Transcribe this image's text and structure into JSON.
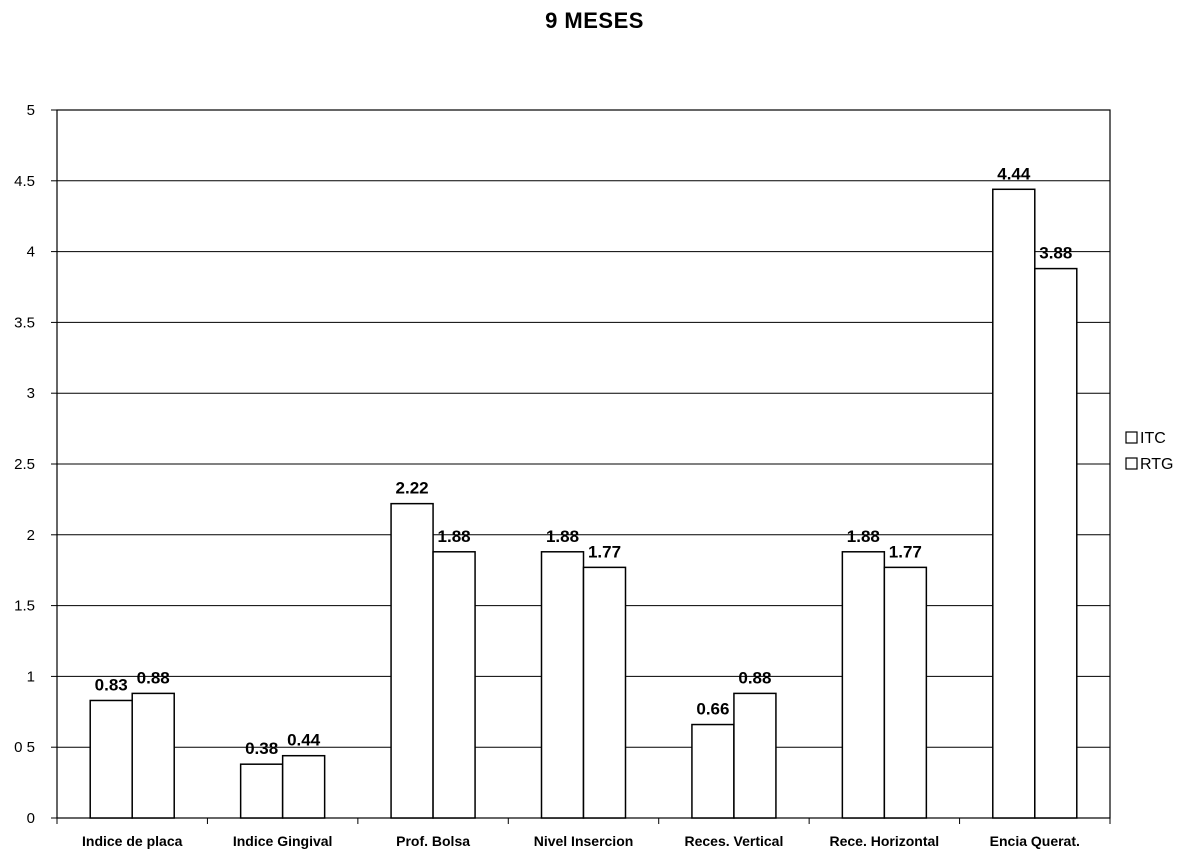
{
  "chart_data": {
    "type": "bar",
    "title": "9 MESES",
    "xlabel": "",
    "ylabel": "",
    "ylim": [
      0,
      5
    ],
    "ytick_step": 0.5,
    "ytick_labels": [
      "0",
      "0 5",
      "1",
      "1.5",
      "2",
      "2.5",
      "3",
      "3.5",
      "4",
      "4.5",
      "5"
    ],
    "grid": true,
    "legend_position": "right",
    "categories": [
      "Indice de placa",
      "Indice Gingival",
      "Prof. Bolsa",
      "Nivel Insercion",
      "Reces. Vertical",
      "Rece. Horizontal",
      "Encia Querat."
    ],
    "series": [
      {
        "name": "ITC",
        "values": [
          0.83,
          0.38,
          2.22,
          1.88,
          0.66,
          1.88,
          4.44
        ],
        "labels": [
          "0.83",
          "0.38",
          "2.22",
          "1.88",
          "0.66",
          "1.88",
          "4.44"
        ]
      },
      {
        "name": "RTG",
        "values": [
          0.88,
          0.44,
          1.88,
          1.77,
          0.88,
          1.77,
          3.88
        ],
        "labels": [
          "0.88",
          "0.44",
          "1.88",
          "1.77",
          "0.88",
          "1.77",
          "3.88"
        ]
      }
    ],
    "colors": {
      "bar_fill": "#ffffff",
      "bar_stroke": "#000000",
      "grid": "#000000"
    }
  }
}
